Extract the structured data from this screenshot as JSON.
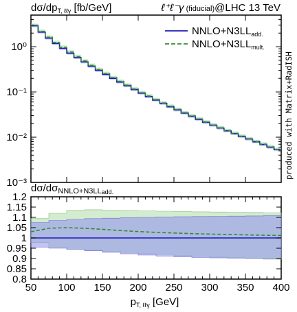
{
  "colors": {
    "nnlo_add": "#1a1ab5",
    "nnlo_mult": "#2e8b2e",
    "band_add": "#8f8ff0",
    "band_mult": "#a8d8a0"
  },
  "chart_data": [
    {
      "type": "line",
      "panel": "main",
      "title_left": "dσ/dp",
      "title_left_sub": "T, ℓℓγ",
      "title_left_unit": " [fb/GeV]",
      "title_right_process": "ℓ⁺ℓ⁻γ",
      "title_right_fiducial": " (fiducial)",
      "title_right_energy": "@LHC 13 TeV",
      "side_note": "produced with Matrix+RadISH",
      "log_y": true,
      "xlim": [
        50,
        400
      ],
      "ylim": [
        0.001,
        5
      ],
      "ytick_labels": [
        "10⁰",
        "10⁻¹",
        "10⁻²",
        "10⁻³"
      ],
      "ytick_values": [
        1,
        0.1,
        0.01,
        0.001
      ],
      "legend_position": "top-right",
      "x": [
        50,
        60,
        70,
        80,
        90,
        100,
        110,
        120,
        130,
        140,
        150,
        160,
        170,
        180,
        190,
        200,
        210,
        220,
        230,
        240,
        250,
        260,
        270,
        280,
        290,
        300,
        310,
        320,
        330,
        340,
        350,
        360,
        370,
        380,
        390,
        400
      ],
      "series": [
        {
          "name": "NNLO+N3LL",
          "name_sub": "add.",
          "style": "solid",
          "values": [
            2.9,
            2.1,
            1.55,
            1.18,
            0.92,
            0.72,
            0.575,
            0.46,
            0.37,
            0.3,
            0.245,
            0.2,
            0.165,
            0.137,
            0.113,
            0.094,
            0.079,
            0.066,
            0.056,
            0.047,
            0.04,
            0.034,
            0.029,
            0.0248,
            0.0213,
            0.0184,
            0.0159,
            0.0138,
            0.012,
            0.0104,
            0.0091,
            0.0079,
            0.0069,
            0.006,
            0.0053,
            0.0046
          ]
        },
        {
          "name": "NNLO+N3LL",
          "name_sub": "mult.",
          "style": "dashed",
          "values": [
            2.95,
            2.17,
            1.62,
            1.24,
            0.97,
            0.76,
            0.605,
            0.483,
            0.387,
            0.313,
            0.255,
            0.207,
            0.171,
            0.141,
            0.116,
            0.096,
            0.081,
            0.0675,
            0.057,
            0.048,
            0.041,
            0.0346,
            0.0295,
            0.0252,
            0.0216,
            0.0186,
            0.0161,
            0.0139,
            0.0121,
            0.0105,
            0.0092,
            0.008,
            0.007,
            0.0061,
            0.0053,
            0.0047
          ]
        }
      ]
    },
    {
      "type": "line",
      "panel": "ratio",
      "title": "dσ/dσ",
      "title_sub": "NNLO+N3LL",
      "title_subsub": "add.",
      "xlabel": "p",
      "xlabel_sub": "T, ℓℓγ",
      "xlabel_unit": " [GeV]",
      "xlim": [
        50,
        400
      ],
      "ylim": [
        0.8,
        1.2
      ],
      "xticks": [
        "50",
        "100",
        "150",
        "200",
        "250",
        "300",
        "350",
        "400"
      ],
      "yticks": [
        "1.2",
        "1.15",
        "1.1",
        "1.05",
        "1",
        "0.95",
        "0.9",
        "0.85",
        "0.8"
      ],
      "x": [
        50,
        75,
        100,
        125,
        150,
        175,
        200,
        225,
        250,
        275,
        300,
        325,
        350,
        375,
        400
      ],
      "series": [
        {
          "name": "NNLO+N3LL add.",
          "values": [
            1,
            1,
            1,
            1,
            1,
            1,
            1,
            1,
            1,
            1,
            1,
            1,
            1,
            1,
            1
          ],
          "band_low": [
            0.955,
            0.95,
            0.945,
            0.938,
            0.93,
            0.923,
            0.917,
            0.912,
            0.908,
            0.905,
            0.903,
            0.902,
            0.901,
            0.9,
            0.9
          ],
          "band_high": [
            1.075,
            1.085,
            1.09,
            1.094,
            1.096,
            1.098,
            1.1,
            1.102,
            1.103,
            1.104,
            1.105,
            1.106,
            1.107,
            1.108,
            1.108
          ]
        },
        {
          "name": "NNLO+N3LL mult.",
          "values": [
            1.03,
            1.047,
            1.05,
            1.047,
            1.042,
            1.036,
            1.031,
            1.027,
            1.024,
            1.021,
            1.019,
            1.017,
            1.015,
            1.013,
            1.012
          ],
          "band_low": [
            0.978,
            0.955,
            0.945,
            0.94,
            0.935,
            0.93,
            0.925,
            0.92,
            0.915,
            0.911,
            0.907,
            0.904,
            0.9,
            0.897,
            0.893
          ],
          "band_high": [
            1.095,
            1.12,
            1.135,
            1.137,
            1.135,
            1.133,
            1.131,
            1.13,
            1.128,
            1.127,
            1.126,
            1.125,
            1.124,
            1.122,
            1.12
          ]
        }
      ]
    }
  ]
}
